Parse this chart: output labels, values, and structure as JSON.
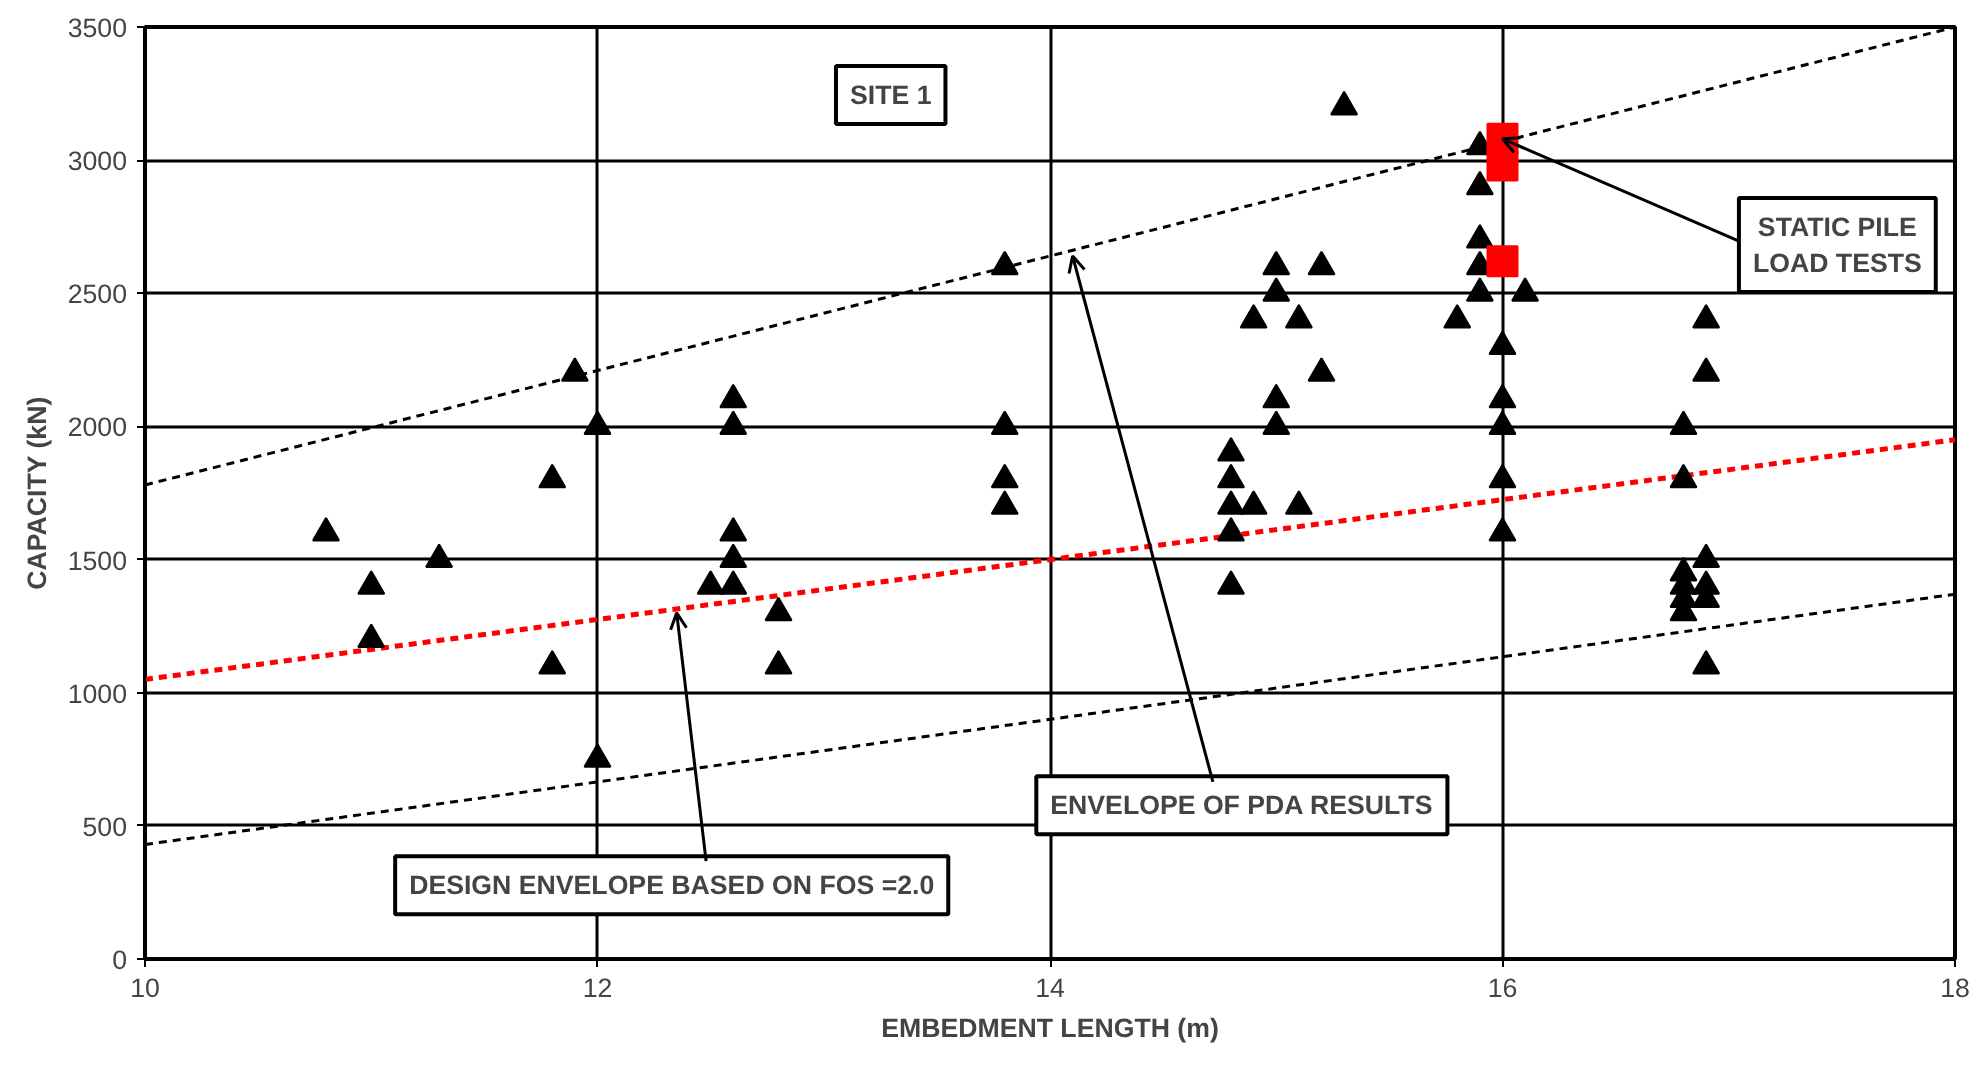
{
  "chart_data": {
    "type": "scatter",
    "xlabel": "EMBEDMENT LENGTH (m)",
    "ylabel": "CAPACITY (kN)",
    "xlim": [
      10,
      18
    ],
    "ylim": [
      0,
      3500
    ],
    "xticks": [
      10,
      12,
      14,
      16,
      18
    ],
    "yticks": [
      0,
      500,
      1000,
      1500,
      2000,
      2500,
      3000,
      3500
    ],
    "grid": true,
    "series": [
      {
        "type": "line",
        "color": "#000000",
        "line_style": "dashed",
        "marker": "none",
        "x": [
          10,
          18
        ],
        "values": [
          1780,
          3500
        ]
      },
      {
        "type": "line",
        "color": "#ff0000",
        "line_style": "dashed",
        "marker": "none",
        "x": [
          10,
          18
        ],
        "values": [
          1050,
          1950
        ]
      },
      {
        "type": "line",
        "color": "#000000",
        "line_style": "dashed",
        "marker": "none",
        "x": [
          10,
          18
        ],
        "values": [
          430,
          1370
        ]
      },
      {
        "type": "scatter",
        "color": "#000000",
        "marker": "triangle",
        "x": [
          10.8,
          11.0,
          11.0,
          11.3,
          11.8,
          11.8,
          11.9,
          12.0,
          12.0,
          12.5,
          12.6,
          12.6,
          12.6,
          12.6,
          12.6,
          12.8,
          12.8,
          13.8,
          13.8,
          13.8,
          13.8,
          14.8,
          14.8,
          14.8,
          14.8,
          14.8,
          14.9,
          14.9,
          15.0,
          15.0,
          15.0,
          15.0,
          15.1,
          15.1,
          15.2,
          15.2,
          15.3,
          15.8,
          15.9,
          15.9,
          15.9,
          15.9,
          15.9,
          16.0,
          16.0,
          16.0,
          16.0,
          16.0,
          16.1,
          16.8,
          16.8,
          16.8,
          16.8,
          16.8,
          16.8,
          16.9,
          16.9,
          16.9,
          16.9,
          16.9,
          16.9
        ],
        "values": [
          1600,
          1400,
          1200,
          1500,
          1800,
          1100,
          2200,
          2000,
          750,
          1400,
          2100,
          2000,
          1600,
          1500,
          1400,
          1300,
          1100,
          2600,
          2000,
          1800,
          1700,
          1900,
          1800,
          1700,
          1600,
          1400,
          1700,
          2400,
          2600,
          2500,
          2100,
          2000,
          2400,
          1700,
          2600,
          2200,
          3200,
          2400,
          3050,
          2900,
          2700,
          2600,
          2500,
          2300,
          2100,
          2000,
          1800,
          1600,
          2500,
          2000,
          1800,
          1450,
          1400,
          1350,
          1300,
          2400,
          2200,
          1500,
          1400,
          1350,
          1100
        ]
      },
      {
        "type": "scatter",
        "color": "#ff0000",
        "marker": "square",
        "x": [
          16,
          16,
          16
        ],
        "values": [
          3080,
          2980,
          2620
        ]
      }
    ],
    "annotations": [
      "SITE 1",
      {
        "text": "STATIC PILE\nLOAD TESTS",
        "x": 16,
        "y": 3080
      },
      {
        "text": "ENVELOPE OF PDA RESULTS",
        "x": 14.1,
        "y": 2640
      },
      {
        "text": "DESIGN ENVELOPE BASED ON FOS =2.0",
        "x": 12.35,
        "y": 1300
      }
    ]
  }
}
